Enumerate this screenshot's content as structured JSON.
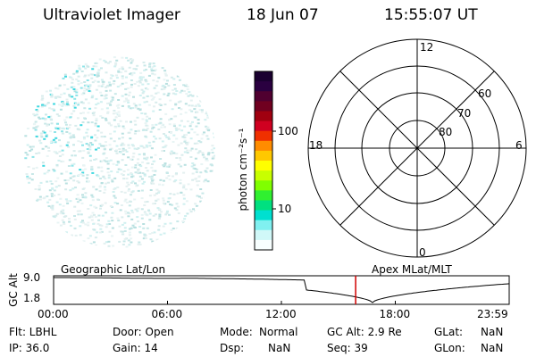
{
  "header": {
    "title": "Ultraviolet Imager",
    "date": "18 Jun 07",
    "time": "15:55:07 UT"
  },
  "colorbar": {
    "unit_label": "photon cm⁻²s⁻¹",
    "ticks": [
      "100",
      "10"
    ],
    "colors": [
      "#1a0030",
      "#2a0040",
      "#500030",
      "#700020",
      "#a00010",
      "#d00020",
      "#f03000",
      "#ff8c00",
      "#ffc800",
      "#ffff00",
      "#c8ff00",
      "#80ff00",
      "#30f030",
      "#00e080",
      "#00e0d0",
      "#80f0f0",
      "#d0f8f8",
      "#f8ffff"
    ]
  },
  "polar_plot": {
    "mlt_labels": {
      "top": "12",
      "left": "18",
      "right": "6",
      "bottom": "0"
    },
    "lat_labels": [
      "60",
      "70",
      "80"
    ]
  },
  "altitude_panel": {
    "y_axis_label": "GC Alt",
    "y_ticks": [
      "9.0",
      "1.8"
    ],
    "left_title": "Geographic Lat/Lon",
    "right_title": "Apex MLat/MLT",
    "time_ticks": [
      "00:00",
      "06:00",
      "12:00",
      "18:00",
      "23:59"
    ],
    "current_time_fraction": 0.663,
    "marker_color": "#d00000"
  },
  "info": {
    "flt": "Flt: LBHL",
    "ip": "IP: 36.0",
    "door": "Door: Open",
    "gain": "Gain: 14",
    "mode_label": "Mode:",
    "mode_value": "Normal",
    "dsp_label": "Dsp:",
    "dsp_value": "NaN",
    "gc_alt": "GC Alt: 2.9 Re",
    "seq": "Seq: 39",
    "glat_label": "GLat:",
    "glat_value": "NaN",
    "glon_label": "GLon:",
    "glon_value": "NaN"
  }
}
